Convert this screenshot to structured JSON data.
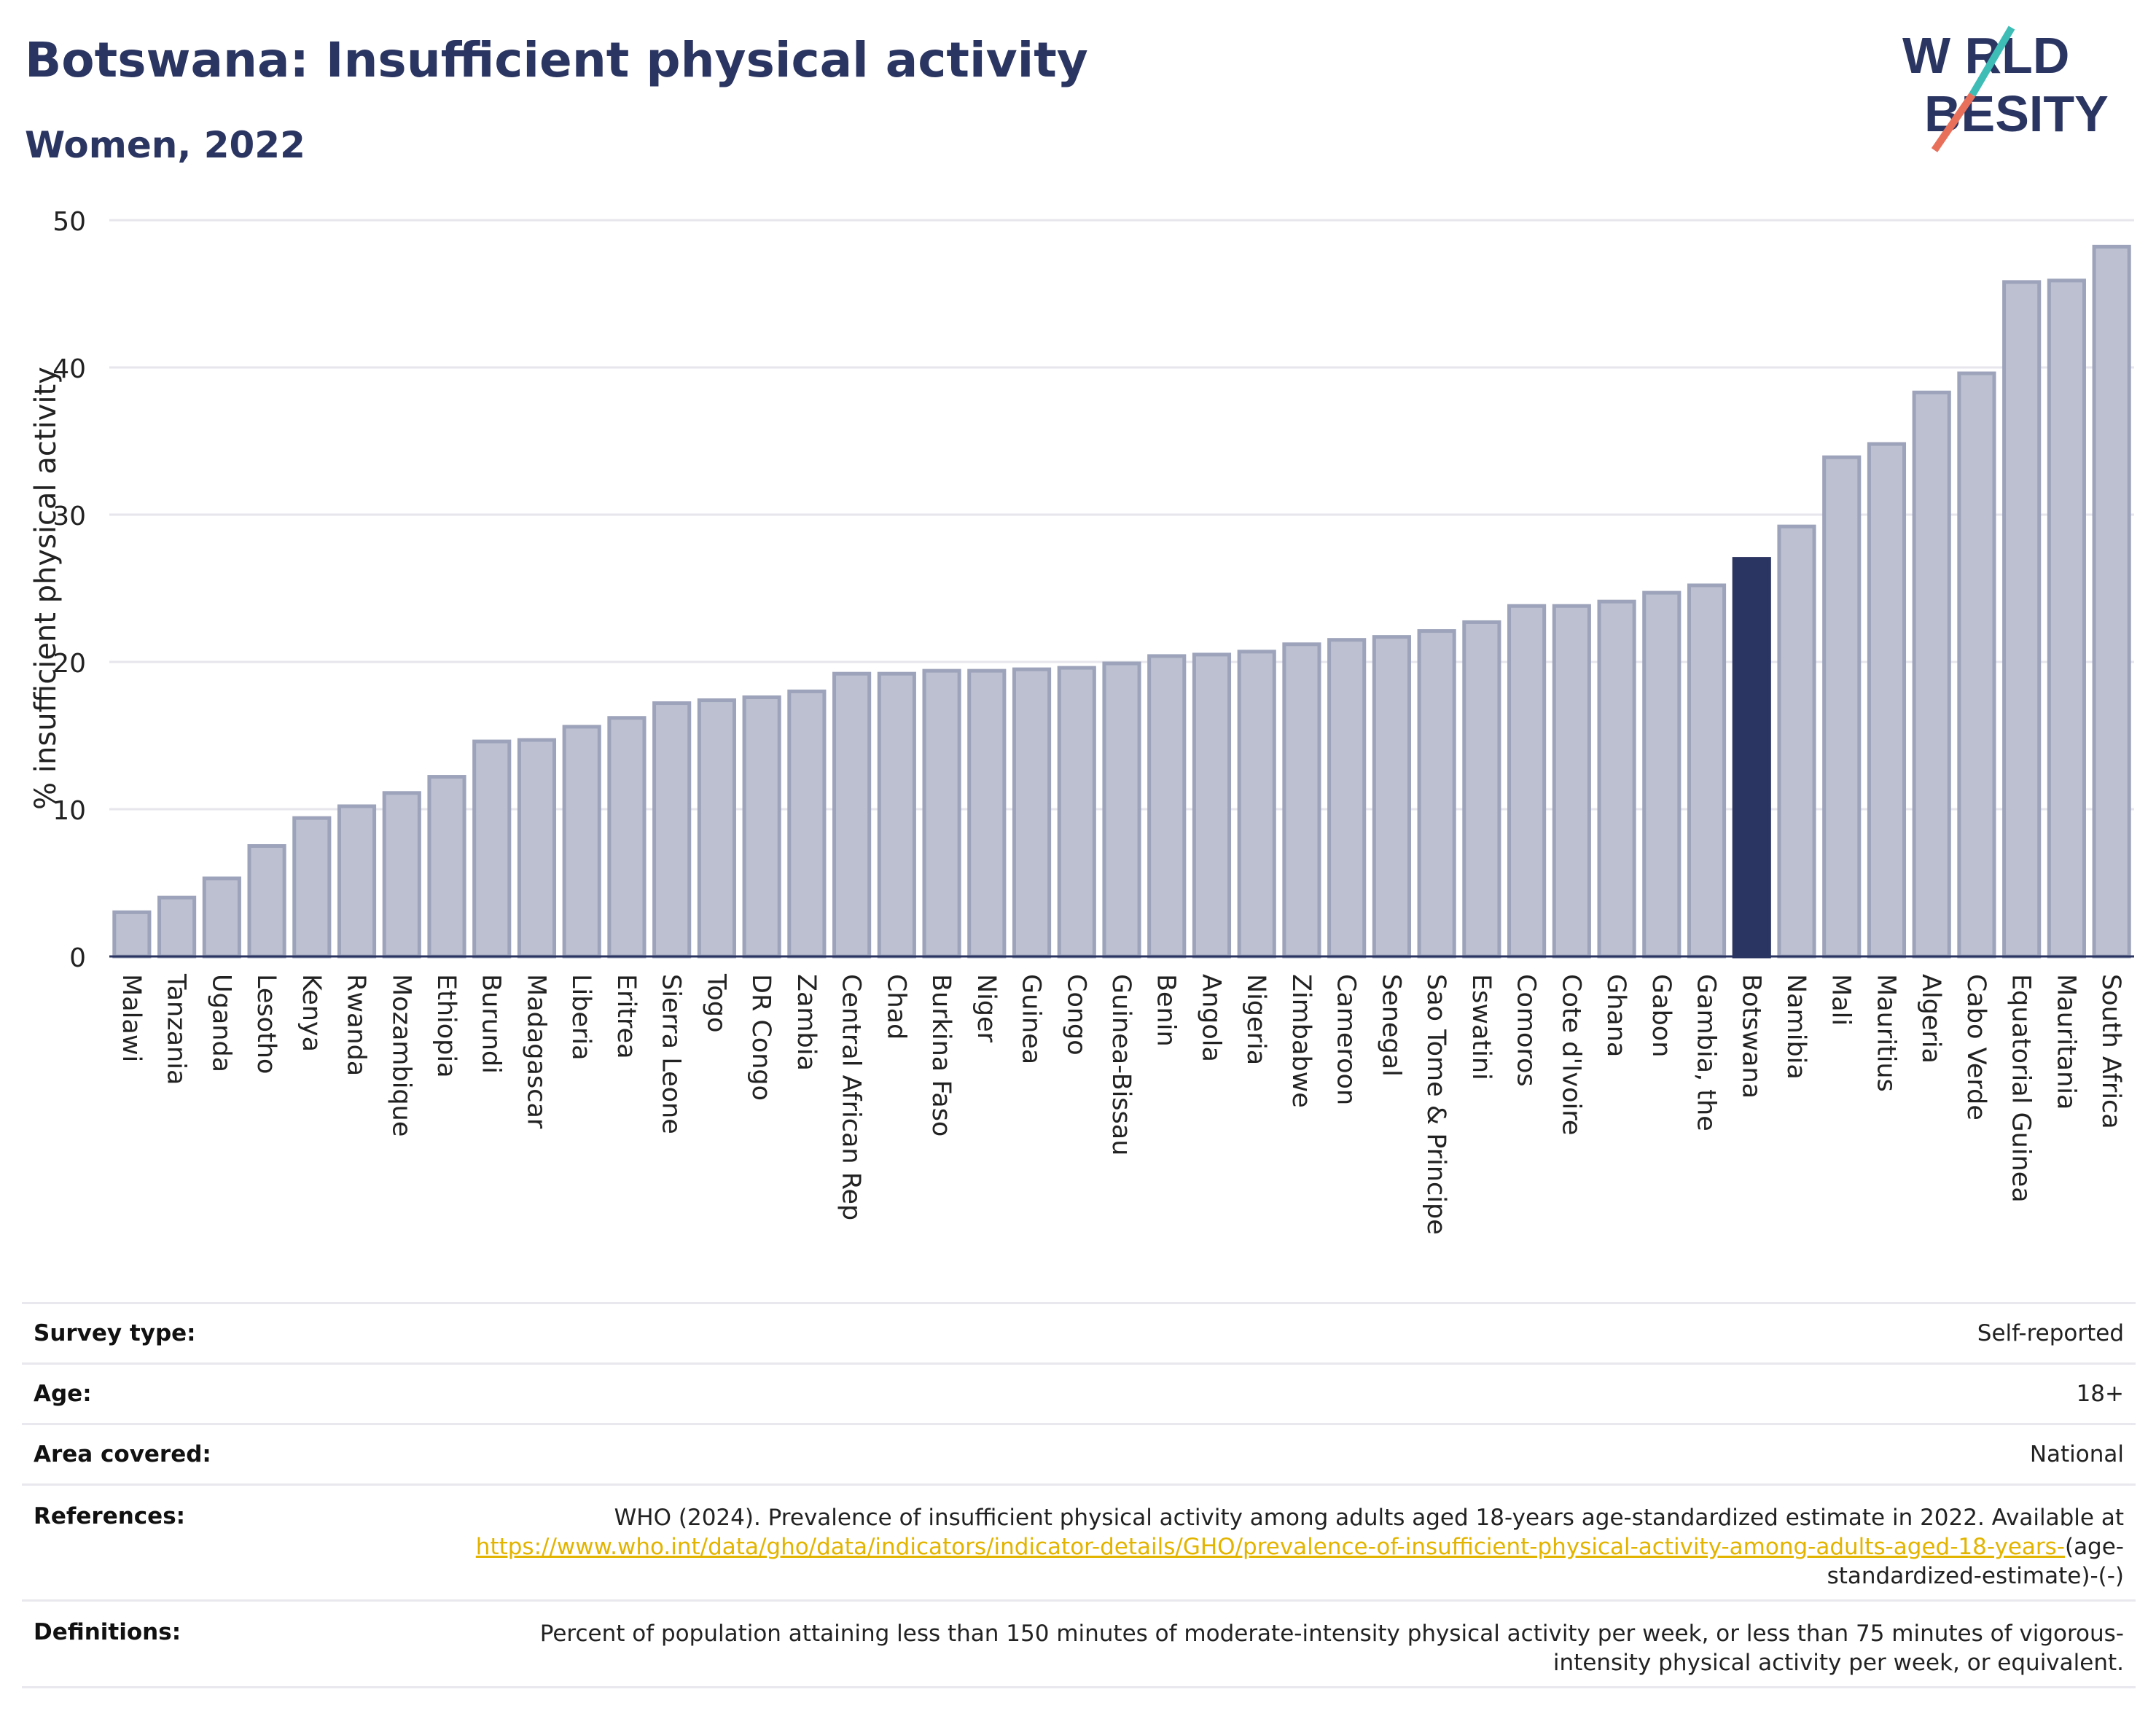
{
  "header": {
    "title": "Botswana: Insufficient physical activity",
    "subtitle": "Women, 2022"
  },
  "logo": {
    "line1": "W RLD",
    "line2": "BESITY",
    "text": "WORLD OBESITY",
    "colors": [
      "#2b3561",
      "#e8705b",
      "#3dbdb6"
    ]
  },
  "chart_data": {
    "type": "bar",
    "title": "Botswana: Insufficient physical activity",
    "subtitle": "Women, 2022",
    "ylabel": "% insufficient physical activity",
    "xlabel": "",
    "ylim": [
      0,
      50
    ],
    "yticks": [
      0,
      10,
      20,
      30,
      40,
      50
    ],
    "grid": true,
    "highlight": "Botswana",
    "colors": {
      "bar": "#bcc0d0",
      "bar_edge": "#9da3ba",
      "highlight": "#2b3561"
    },
    "categories": [
      "Malawi",
      "Tanzania",
      "Uganda",
      "Lesotho",
      "Kenya",
      "Rwanda",
      "Mozambique",
      "Ethiopia",
      "Burundi",
      "Madagascar",
      "Liberia",
      "Eritrea",
      "Sierra Leone",
      "Togo",
      "DR Congo",
      "Zambia",
      "Central African Rep",
      "Chad",
      "Burkina Faso",
      "Niger",
      "Guinea",
      "Congo",
      "Guinea-Bissau",
      "Benin",
      "Angola",
      "Nigeria",
      "Zimbabwe",
      "Cameroon",
      "Senegal",
      "Sao Tome & Principe",
      "Eswatini",
      "Comoros",
      "Cote d'Ivoire",
      "Ghana",
      "Gabon",
      "Gambia, the",
      "Botswana",
      "Namibia",
      "Mali",
      "Mauritius",
      "Algeria",
      "Cabo Verde",
      "Equatorial Guinea",
      "Mauritania",
      "South Africa"
    ],
    "values": [
      3.0,
      4.0,
      5.3,
      7.5,
      9.4,
      10.2,
      11.1,
      12.2,
      14.6,
      14.7,
      15.6,
      16.2,
      17.2,
      17.4,
      17.6,
      18.0,
      19.2,
      19.2,
      19.4,
      19.4,
      19.5,
      19.6,
      19.9,
      20.4,
      20.5,
      20.7,
      21.2,
      21.5,
      21.7,
      22.1,
      22.7,
      23.8,
      23.8,
      24.1,
      24.7,
      25.2,
      27.0,
      29.2,
      33.9,
      34.8,
      38.3,
      39.6,
      45.8,
      45.9,
      48.2
    ]
  },
  "details": {
    "survey_type_label": "Survey type:",
    "survey_type_value": "Self-reported",
    "age_label": "Age:",
    "age_value": "18+",
    "area_label": "Area covered:",
    "area_value": "National",
    "references_label": "References:",
    "references_text": "WHO (2024). Prevalence of insufficient physical activity among adults aged 18-years age-standardized estimate in 2022. Available at",
    "references_link": "https://www.who.int/data/gho/data/indicators/indicator-details/GHO/prevalence-of-insufficient-physical-activity-among-adults-aged-18-years-",
    "references_suffix": "(age-standardized-estimate)-(-)",
    "definitions_label": "Definitions:",
    "definitions_text": "Percent of population attaining less than 150 minutes of moderate-intensity physical activity per week, or less than 75 minutes of vigorous-intensity physical activity per week, or equivalent."
  }
}
